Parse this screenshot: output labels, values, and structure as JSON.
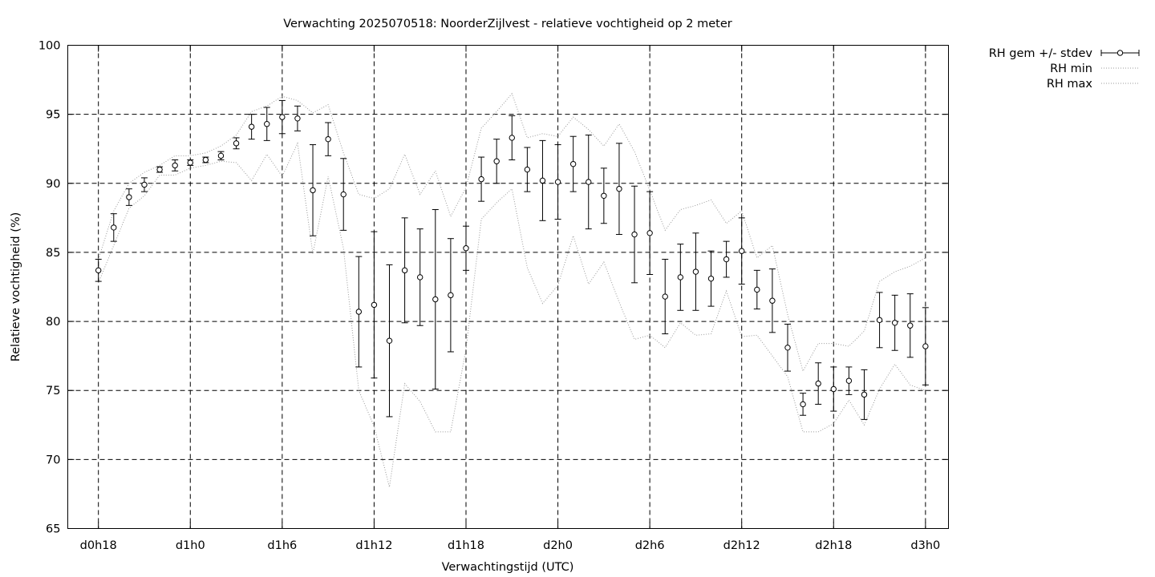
{
  "chart_data": {
    "type": "line",
    "title": "Verwachting 2025070518: NoorderZijlvest - relatieve vochtigheid op 2 meter",
    "xlabel": "Verwachtingstijd (UTC)",
    "ylabel": "Relatieve vochtigheid (%)",
    "ylim": [
      65,
      100
    ],
    "yticks": [
      65,
      70,
      75,
      80,
      85,
      90,
      95,
      100
    ],
    "xlim": [
      -2,
      55.5
    ],
    "xticks": [
      {
        "pos": 0,
        "label": "d0h18"
      },
      {
        "pos": 6,
        "label": "d1h0"
      },
      {
        "pos": 12,
        "label": "d1h6"
      },
      {
        "pos": 18,
        "label": "d1h12"
      },
      {
        "pos": 24,
        "label": "d1h18"
      },
      {
        "pos": 30,
        "label": "d2h0"
      },
      {
        "pos": 36,
        "label": "d2h6"
      },
      {
        "pos": 42,
        "label": "d2h12"
      },
      {
        "pos": 48,
        "label": "d2h18"
      },
      {
        "pos": 54,
        "label": "d3h0"
      }
    ],
    "grid": true,
    "legend_position": "outside-top-right",
    "x": [
      0,
      1,
      2,
      3,
      4,
      5,
      6,
      7,
      8,
      9,
      10,
      11,
      12,
      13,
      14,
      15,
      16,
      17,
      18,
      19,
      20,
      21,
      22,
      23,
      24,
      25,
      26,
      27,
      28,
      29,
      30,
      31,
      32,
      33,
      34,
      35,
      36,
      37,
      38,
      39,
      40,
      41,
      42,
      43,
      44,
      45,
      46,
      47,
      48,
      49,
      50,
      51,
      52,
      53,
      54
    ],
    "series": [
      {
        "name": "RH gem +/- stdev",
        "style": "points-errorbars",
        "mean": [
          83.7,
          86.8,
          89.0,
          89.9,
          91.0,
          91.3,
          91.5,
          91.7,
          92.0,
          92.9,
          94.1,
          94.3,
          94.8,
          94.7,
          89.5,
          93.2,
          89.2,
          80.7,
          81.2,
          78.6,
          83.7,
          83.2,
          81.6,
          81.9,
          85.3,
          90.3,
          91.6,
          93.3,
          91.0,
          90.2,
          90.1,
          91.4,
          90.1,
          89.1,
          89.6,
          86.3,
          86.4,
          81.8,
          83.2,
          83.6,
          83.1,
          84.5,
          85.1,
          82.3,
          81.5,
          78.1,
          74.0,
          75.5,
          75.1,
          75.7,
          74.7,
          80.1,
          79.9,
          79.7,
          78.2
        ],
        "stdev": [
          0.8,
          1.0,
          0.6,
          0.5,
          0.2,
          0.4,
          0.2,
          0.2,
          0.3,
          0.4,
          0.9,
          1.2,
          1.2,
          0.9,
          3.3,
          1.2,
          2.6,
          4.0,
          5.3,
          5.5,
          3.8,
          3.5,
          6.5,
          4.1,
          1.6,
          1.6,
          1.6,
          1.6,
          1.6,
          2.9,
          2.7,
          2.0,
          3.4,
          2.0,
          3.3,
          3.5,
          3.0,
          2.7,
          2.4,
          2.8,
          2.0,
          1.3,
          2.4,
          1.4,
          2.3,
          1.7,
          0.8,
          1.5,
          1.6,
          1.0,
          1.8,
          2.0,
          2.0,
          2.3,
          2.8
        ]
      },
      {
        "name": "RH min",
        "style": "dotted",
        "values": [
          82.8,
          85.5,
          88.2,
          89.1,
          90.6,
          90.6,
          91.1,
          91.3,
          91.6,
          91.5,
          90.2,
          92.1,
          90.5,
          92.9,
          84.9,
          90.5,
          85.3,
          75.0,
          72.4,
          68.0,
          75.5,
          74.2,
          72.0,
          72.0,
          78.0,
          87.4,
          88.6,
          89.6,
          83.9,
          81.3,
          82.6,
          86.2,
          82.7,
          84.3,
          81.4,
          78.7,
          79.0,
          78.1,
          79.9,
          79.0,
          79.1,
          82.2,
          78.9,
          79.0,
          77.5,
          76.0,
          72.0,
          72.0,
          72.6,
          74.3,
          72.5,
          75.1,
          76.9,
          75.4,
          75.0
        ]
      },
      {
        "name": "RH max",
        "style": "dotted",
        "values": [
          84.5,
          88.0,
          90.0,
          90.8,
          91.3,
          92.0,
          92.0,
          92.2,
          92.7,
          93.5,
          95.2,
          95.6,
          96.3,
          96.0,
          95.1,
          95.7,
          92.2,
          89.2,
          88.9,
          89.6,
          92.1,
          89.2,
          90.9,
          87.6,
          89.7,
          94.0,
          95.2,
          96.5,
          93.3,
          93.6,
          93.4,
          94.8,
          93.9,
          92.7,
          94.3,
          92.3,
          89.5,
          86.6,
          88.1,
          88.4,
          88.8,
          87.1,
          88.0,
          84.6,
          85.5,
          80.5,
          76.4,
          78.4,
          78.4,
          78.2,
          79.3,
          82.9,
          83.6,
          84.0,
          84.6
        ]
      }
    ]
  }
}
